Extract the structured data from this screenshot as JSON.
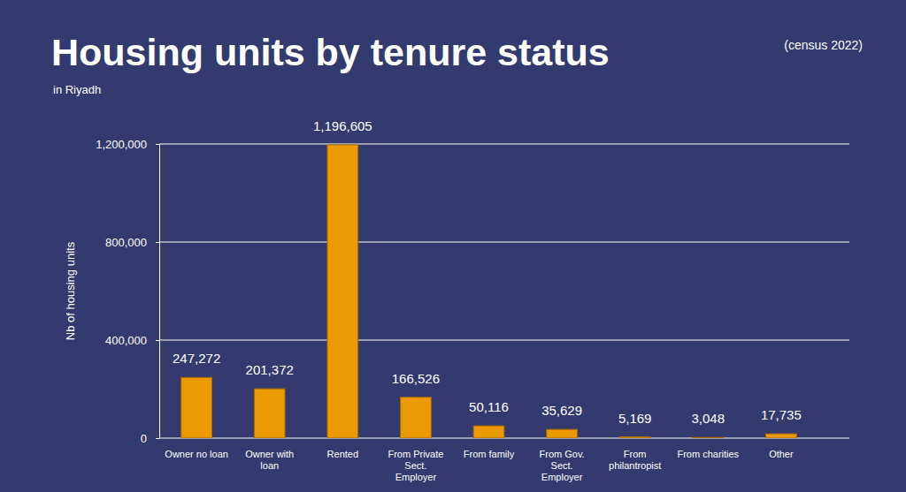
{
  "chart_data": {
    "type": "bar",
    "title": "Housing units by tenure status",
    "subtitle": "in Riyadh",
    "annotations": [
      "(census 2022)"
    ],
    "ylabel": "Nb of housing units",
    "categories": [
      "Owner no loan",
      "Owner with\nloan",
      "Rented",
      "From Private\nSect.\nEmployer",
      "From family",
      "From Gov.\nSect.\nEmployer",
      "From\nphilantropist",
      "From charities",
      "Other"
    ],
    "values": [
      247272,
      201372,
      1196605,
      166526,
      50116,
      35629,
      5169,
      3048,
      17735
    ],
    "value_labels": [
      "247,272",
      "201,372",
      "1,196,605",
      "166,526",
      "50,116",
      "35,629",
      "5,169",
      "3,048",
      "17,735"
    ],
    "color": "#eb9a06",
    "ylim": [
      0,
      1200000
    ],
    "yticks": [
      0,
      {
        "value": 400000,
        "label": "400,000"
      },
      {
        "value": 800000,
        "label": "800,000"
      },
      {
        "value": 1200000,
        "label": "1,200,000"
      }
    ],
    "grid": true,
    "data_labels": true
  }
}
